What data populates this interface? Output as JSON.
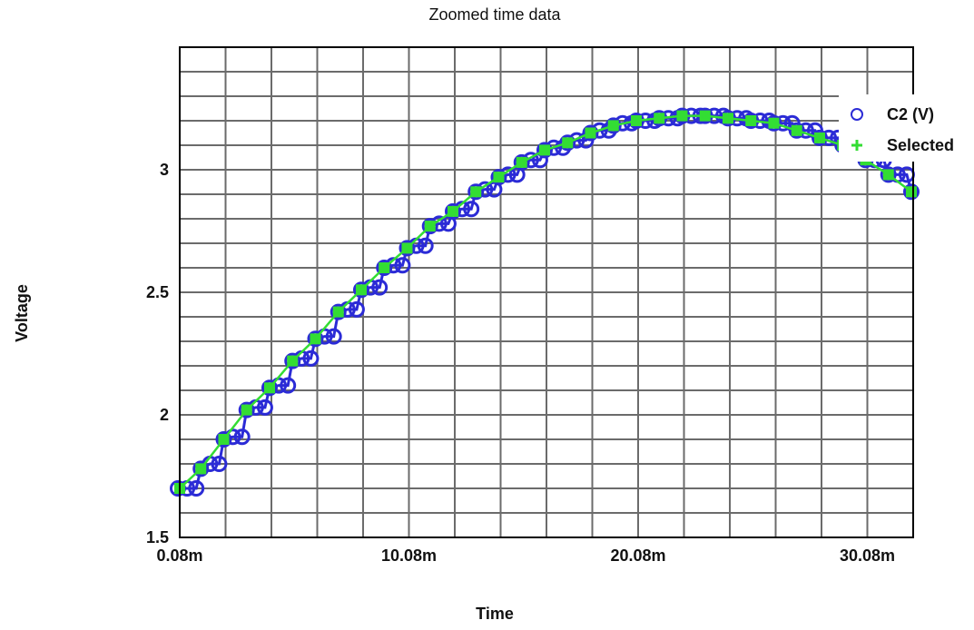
{
  "chart_data": {
    "type": "scatter",
    "title": "Zoomed time data",
    "xlabel": "Time",
    "ylabel": "Voltage",
    "xlim": [
      0.08,
      32.08
    ],
    "ylim": [
      1.5,
      3.5
    ],
    "x_ticks": [
      {
        "value": 0.08,
        "label": "0.08m"
      },
      {
        "value": 10.08,
        "label": "10.08m"
      },
      {
        "value": 20.08,
        "label": "20.08m"
      },
      {
        "value": 30.08,
        "label": "30.08m"
      }
    ],
    "y_ticks": [
      {
        "value": 1.5,
        "label": "1.5"
      },
      {
        "value": 2,
        "label": "2"
      },
      {
        "value": 2.5,
        "label": "2.5"
      },
      {
        "value": 3,
        "label": "3"
      }
    ],
    "grid": true,
    "legend_position": "top-right",
    "colors": {
      "c2": "#2b2bd6",
      "selected": "#33dd33"
    },
    "series": [
      {
        "name": "C2 (V)",
        "marker": "circle",
        "x": [
          0.0,
          0.4,
          0.8,
          1.0,
          1.4,
          1.8,
          2.0,
          2.4,
          2.8,
          3.0,
          3.4,
          3.8,
          4.0,
          4.4,
          4.8,
          5.0,
          5.4,
          5.8,
          6.0,
          6.4,
          6.8,
          7.0,
          7.4,
          7.8,
          8.0,
          8.4,
          8.8,
          9.0,
          9.4,
          9.8,
          10.0,
          10.4,
          10.8,
          11.0,
          11.4,
          11.8,
          12.0,
          12.4,
          12.8,
          13.0,
          13.4,
          13.8,
          14.0,
          14.4,
          14.8,
          15.0,
          15.4,
          15.8,
          16.0,
          16.4,
          16.8,
          17.0,
          17.4,
          17.8,
          18.0,
          18.4,
          18.8,
          19.0,
          19.4,
          19.8,
          20.0,
          20.4,
          20.8,
          21.0,
          21.4,
          21.8,
          22.0,
          22.4,
          22.8,
          23.0,
          23.4,
          23.8,
          24.0,
          24.4,
          24.8,
          25.0,
          25.4,
          25.8,
          26.0,
          26.4,
          26.8,
          27.0,
          27.4,
          27.8,
          28.0,
          28.4,
          28.8,
          29.0,
          29.4,
          29.8,
          30.0,
          30.4,
          30.8,
          31.0,
          31.4,
          31.8,
          32.0
        ],
        "y": [
          1.7,
          1.7,
          1.7,
          1.78,
          1.8,
          1.8,
          1.9,
          1.91,
          1.91,
          2.02,
          2.03,
          2.03,
          2.11,
          2.12,
          2.12,
          2.22,
          2.23,
          2.23,
          2.31,
          2.32,
          2.32,
          2.42,
          2.43,
          2.43,
          2.51,
          2.52,
          2.52,
          2.6,
          2.61,
          2.61,
          2.68,
          2.69,
          2.69,
          2.77,
          2.78,
          2.78,
          2.83,
          2.84,
          2.84,
          2.91,
          2.92,
          2.92,
          2.97,
          2.98,
          2.98,
          3.03,
          3.04,
          3.04,
          3.08,
          3.09,
          3.09,
          3.11,
          3.12,
          3.12,
          3.15,
          3.16,
          3.16,
          3.18,
          3.19,
          3.19,
          3.2,
          3.2,
          3.2,
          3.21,
          3.21,
          3.21,
          3.22,
          3.22,
          3.22,
          3.22,
          3.22,
          3.22,
          3.21,
          3.21,
          3.21,
          3.2,
          3.2,
          3.2,
          3.19,
          3.19,
          3.19,
          3.16,
          3.16,
          3.16,
          3.13,
          3.13,
          3.13,
          3.1,
          3.1,
          3.1,
          3.04,
          3.04,
          3.04,
          2.98,
          2.98,
          2.98,
          2.91
        ]
      },
      {
        "name": "Selected",
        "marker": "plus",
        "x": [
          0.08,
          1.0,
          2.0,
          3.0,
          4.0,
          5.0,
          6.0,
          7.0,
          8.0,
          9.0,
          10.0,
          11.0,
          12.0,
          13.0,
          14.0,
          15.0,
          16.0,
          17.0,
          18.0,
          19.0,
          20.0,
          21.0,
          22.0,
          23.0,
          24.0,
          25.0,
          26.0,
          27.0,
          28.0,
          29.0,
          30.0,
          31.0,
          32.0
        ],
        "y": [
          1.7,
          1.78,
          1.9,
          2.02,
          2.11,
          2.22,
          2.31,
          2.42,
          2.51,
          2.6,
          2.68,
          2.77,
          2.83,
          2.91,
          2.97,
          3.03,
          3.08,
          3.11,
          3.15,
          3.18,
          3.2,
          3.21,
          3.22,
          3.22,
          3.21,
          3.2,
          3.19,
          3.16,
          3.13,
          3.1,
          3.04,
          2.98,
          2.91
        ]
      }
    ]
  }
}
